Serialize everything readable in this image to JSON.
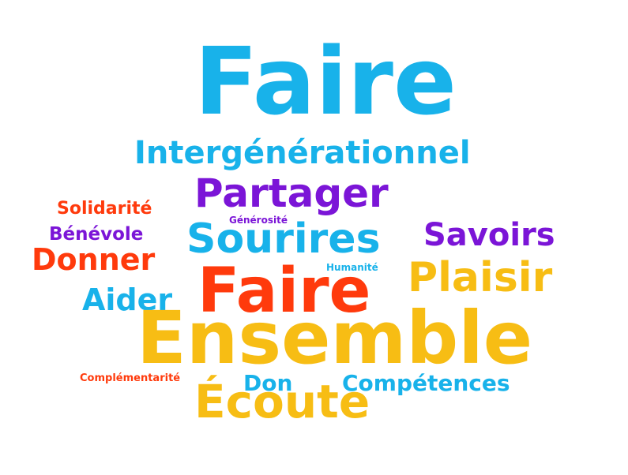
{
  "word_cloud": {
    "words": [
      {
        "text": "Faire",
        "color": "#18b2ea"
      },
      {
        "text": "Intergénérationnel",
        "color": "#18b2ea"
      },
      {
        "text": "Partager",
        "color": "#7b15d7"
      },
      {
        "text": "Solidarité",
        "color": "#ff3a0c"
      },
      {
        "text": "Générosité",
        "color": "#7b15d7"
      },
      {
        "text": "Bénévole",
        "color": "#7b15d7"
      },
      {
        "text": "Sourires",
        "color": "#18b2ea"
      },
      {
        "text": "Savoirs",
        "color": "#7b15d7"
      },
      {
        "text": "Donner",
        "color": "#ff3a0c"
      },
      {
        "text": "Humanité",
        "color": "#18b2ea"
      },
      {
        "text": "Faire",
        "color": "#ff3a0c"
      },
      {
        "text": "Plaisir",
        "color": "#f7bd14"
      },
      {
        "text": "Aider",
        "color": "#18b2ea"
      },
      {
        "text": "Ensemble",
        "color": "#f7bd14"
      },
      {
        "text": "Complémentarité",
        "color": "#ff3a0c"
      },
      {
        "text": "Don",
        "color": "#18b2ea"
      },
      {
        "text": "Compétences",
        "color": "#18b2ea"
      },
      {
        "text": "Écoute",
        "color": "#f7bd14"
      }
    ]
  }
}
